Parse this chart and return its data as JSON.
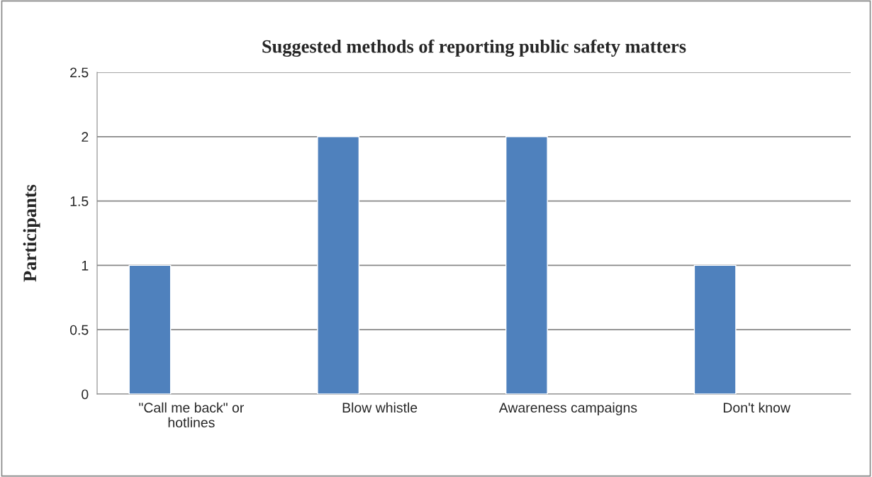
{
  "chart_data": {
    "type": "bar",
    "title": "Suggested methods of reporting public safety matters",
    "ylabel": "Participants",
    "categories": [
      "\"Call me back\" or\nhotlines",
      "Blow whistle",
      "Awareness campaigns",
      "Don't know"
    ],
    "values": [
      1,
      2,
      2,
      1
    ],
    "color": "#4f81bd",
    "ylim": [
      0,
      2.5
    ],
    "yticks": [
      0,
      0.5,
      1,
      1.5,
      2,
      2.5
    ],
    "grid": "y",
    "legend": false
  }
}
